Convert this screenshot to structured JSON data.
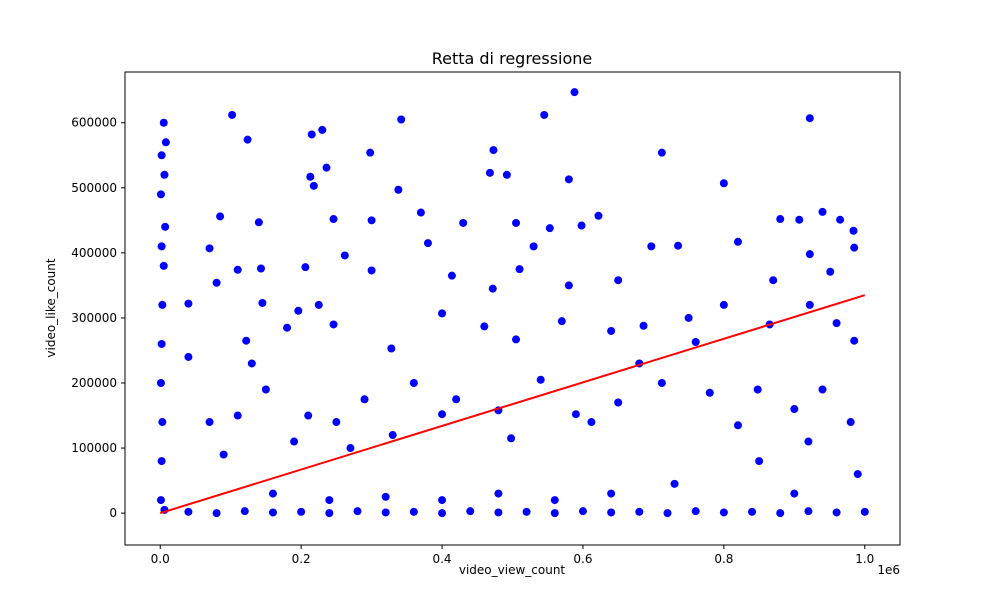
{
  "chart_data": {
    "type": "scatter",
    "title": "Retta di regressione",
    "x_label": "video_view_count",
    "y_label": "video_like_count",
    "x_offset_label": "1e6",
    "xlim": [
      -50000,
      1050000
    ],
    "ylim": [
      -49000,
      678000
    ],
    "xticks": [
      {
        "value": 0,
        "label": "0.0"
      },
      {
        "value": 200000,
        "label": "0.2"
      },
      {
        "value": 400000,
        "label": "0.4"
      },
      {
        "value": 600000,
        "label": "0.6"
      },
      {
        "value": 800000,
        "label": "0.8"
      },
      {
        "value": 1000000,
        "label": "1.0"
      }
    ],
    "yticks": [
      0,
      100000,
      200000,
      300000,
      400000,
      500000,
      600000
    ],
    "series": [
      {
        "color": "#0000ff",
        "x": [
          102000,
          124000,
          230000,
          215000,
          342000,
          588000,
          545000,
          922000,
          473000,
          712000,
          298000,
          580000,
          468000,
          492000,
          213000,
          218000,
          338000,
          800000,
          236000,
          940000,
          907000,
          965000,
          984000,
          622000,
          430000,
          505000,
          553000,
          85000,
          140000,
          246000,
          300000,
          370000,
          598000,
          697000,
          735000,
          820000,
          880000,
          985000,
          922000,
          951000,
          870000,
          750000,
          686000,
          650000,
          580000,
          530000,
          510000,
          472000,
          414000,
          380000,
          300000,
          262000,
          206000,
          143000,
          145000,
          40000,
          80000,
          110000,
          70000,
          225000,
          246000,
          196000,
          180000,
          122000,
          328000,
          400000,
          460000,
          505000,
          570000,
          640000,
          760000,
          800000,
          865000,
          922000,
          960000,
          985000,
          940000,
          900000,
          848000,
          820000,
          780000,
          712000,
          680000,
          650000,
          612000,
          590000,
          540000,
          498000,
          480000,
          420000,
          400000,
          360000,
          330000,
          290000,
          270000,
          250000,
          210000,
          190000,
          150000,
          130000,
          110000,
          90000,
          70000,
          40000,
          920000,
          980000,
          990000,
          900000,
          850000,
          730000,
          640000,
          560000,
          480000,
          400000,
          320000,
          240000,
          160000,
          5000,
          8000,
          2000,
          6000,
          1000,
          7000,
          2000,
          5000,
          3000,
          2000,
          1000,
          3000,
          2000,
          1000,
          6000,
          40000,
          80000,
          120000,
          160000,
          200000,
          240000,
          280000,
          320000,
          360000,
          400000,
          440000,
          480000,
          520000,
          560000,
          600000,
          640000,
          680000,
          720000,
          760000,
          800000,
          840000,
          880000,
          920000,
          960000,
          1000000
        ],
        "values": [
          612000,
          574000,
          589000,
          582000,
          605000,
          647000,
          612000,
          607000,
          558000,
          554000,
          554000,
          513000,
          523000,
          520000,
          517000,
          503000,
          497000,
          507000,
          531000,
          463000,
          451000,
          451000,
          434000,
          457000,
          446000,
          446000,
          438000,
          456000,
          447000,
          452000,
          450000,
          462000,
          442000,
          410000,
          411000,
          417000,
          452000,
          408000,
          398000,
          371000,
          358000,
          300000,
          288000,
          358000,
          350000,
          410000,
          375000,
          345000,
          365000,
          415000,
          373000,
          396000,
          378000,
          376000,
          323000,
          322000,
          354000,
          374000,
          407000,
          320000,
          290000,
          311000,
          285000,
          265000,
          253000,
          307000,
          287000,
          267000,
          295000,
          280000,
          263000,
          320000,
          290000,
          320000,
          292000,
          265000,
          190000,
          160000,
          190000,
          135000,
          185000,
          200000,
          230000,
          170000,
          140000,
          152000,
          205000,
          115000,
          158000,
          175000,
          152000,
          200000,
          120000,
          175000,
          100000,
          140000,
          150000,
          110000,
          190000,
          230000,
          150000,
          90000,
          140000,
          240000,
          110000,
          140000,
          60000,
          30000,
          80000,
          45000,
          30000,
          20000,
          30000,
          20000,
          25000,
          20000,
          30000,
          600000,
          570000,
          550000,
          520000,
          490000,
          440000,
          410000,
          380000,
          320000,
          260000,
          200000,
          140000,
          80000,
          20000,
          5000,
          2000,
          0,
          3000,
          1000,
          2000,
          0,
          3000,
          1000,
          2000,
          0,
          3000,
          1000,
          2000,
          0,
          3000,
          1000,
          2000,
          0,
          3000,
          1000,
          2000,
          0,
          3000,
          1000,
          2000
        ]
      }
    ],
    "regression": {
      "color": "#ff0000",
      "x": [
        0,
        1000000
      ],
      "values": [
        0,
        335000
      ]
    }
  }
}
